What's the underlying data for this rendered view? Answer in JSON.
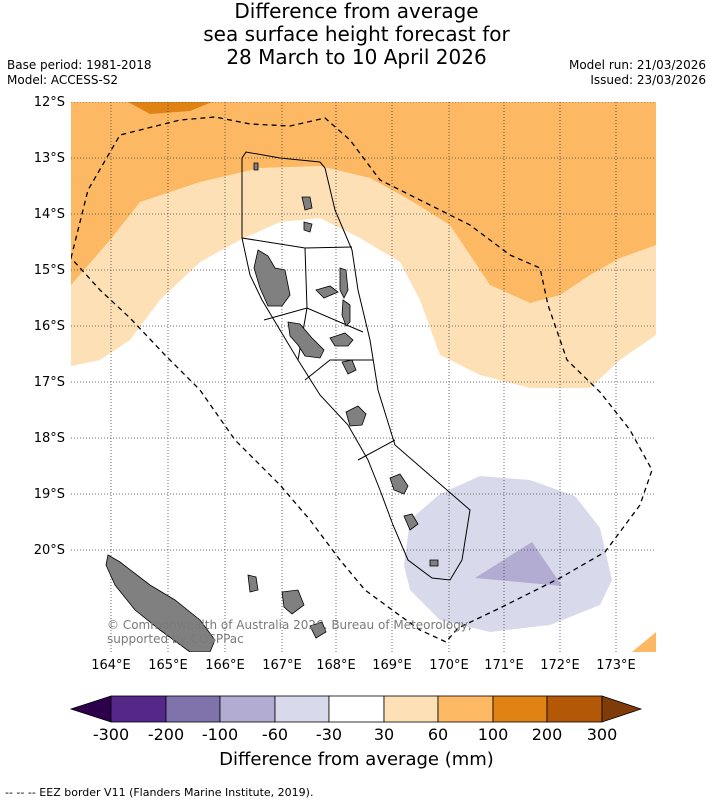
{
  "title": {
    "line1": "Difference from average",
    "line2": "sea surface height forecast for",
    "line3": "28 March to 10 April 2026"
  },
  "meta_left": {
    "base_period": "Base period: 1981-2018",
    "model": "Model: ACCESS-S2"
  },
  "meta_right": {
    "model_run": "Model run: 21/03/2026",
    "issued": "Issued: 23/03/2026"
  },
  "map": {
    "lat_labels": [
      "12°S",
      "13°S",
      "14°S",
      "15°S",
      "16°S",
      "17°S",
      "18°S",
      "19°S",
      "20°S"
    ],
    "lon_labels": [
      "164°E",
      "165°E",
      "166°E",
      "167°E",
      "168°E",
      "169°E",
      "170°E",
      "171°E",
      "172°E",
      "173°E"
    ],
    "copyright": "© Commonwealth of Australia 2026, Bureau of Meteorology, supported by COSPPac"
  },
  "colorbar": {
    "title": "Difference from average (mm)",
    "labels": [
      "-300",
      "-200",
      "-100",
      "-60",
      "-30",
      "30",
      "60",
      "100",
      "200",
      "300"
    ],
    "colors": {
      "below": "#2d004b",
      "c1": "#542788",
      "c2": "#8073ac",
      "c3": "#b2abd2",
      "c4": "#d8daeb",
      "c5": "#ffffff",
      "c6": "#fee0b6",
      "c7": "#fdb863",
      "c8": "#e08214",
      "c9": "#b35806",
      "above": "#7f3b08"
    }
  },
  "footer": "--  --  -- EEZ border V11 (Flanders Marine Institute, 2019)."
}
